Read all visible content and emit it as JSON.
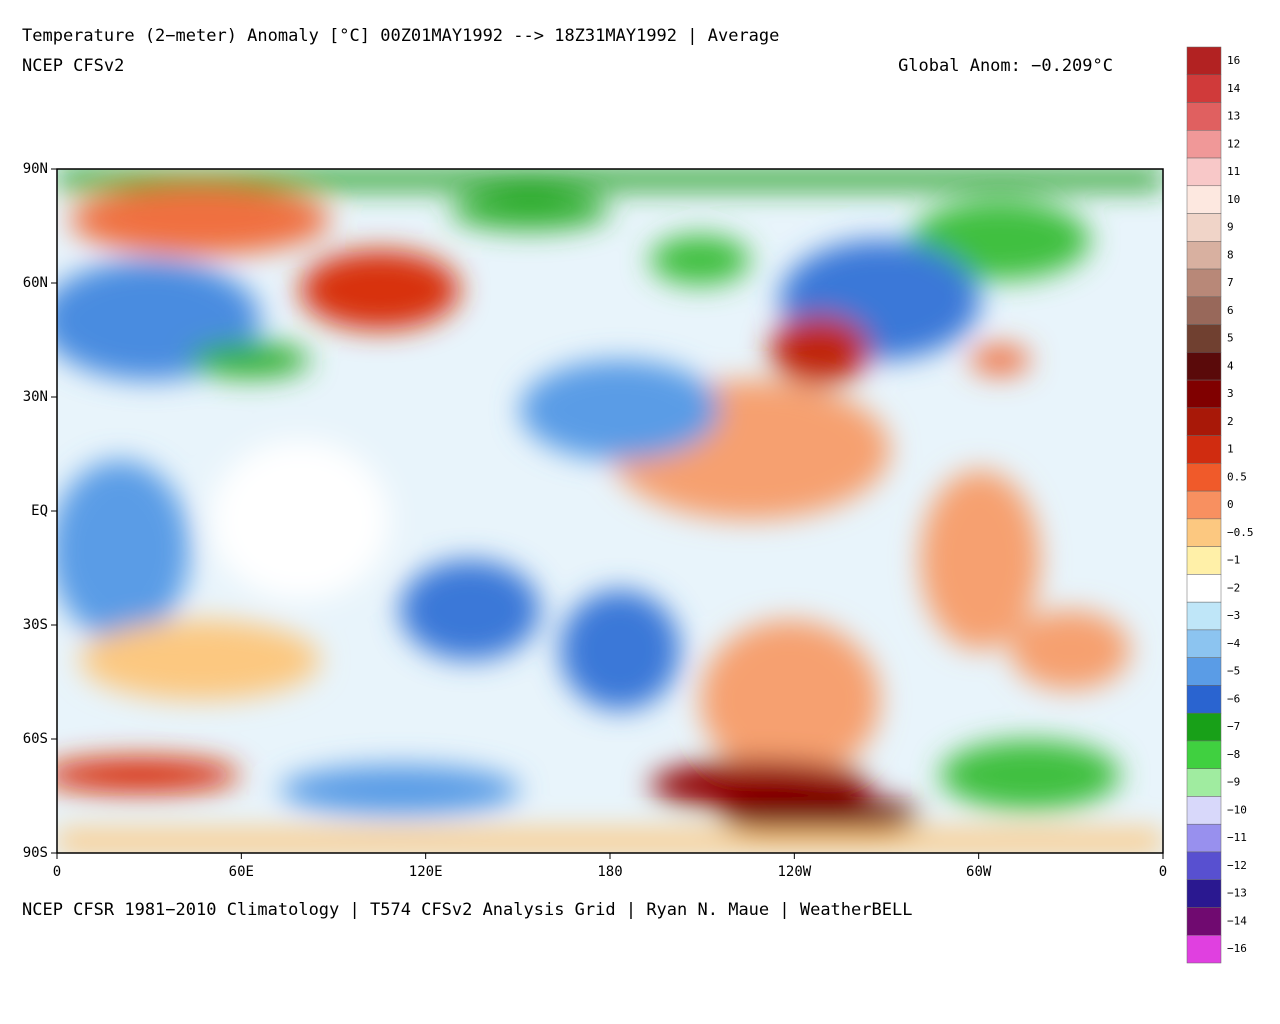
{
  "title": "Temperature (2−meter) Anomaly  [°C] 00Z01MAY1992 --> 18Z31MAY1992 | Average",
  "subtitle": "NCEP CFSv2",
  "global_anom": "Global Anom: −0.209°C",
  "footer": "NCEP CFSR 1981−2010 Climatology | T574 CFSv2 Analysis Grid | Ryan N. Maue | WeatherBELL",
  "lat_labels": [
    "90N",
    "60N",
    "30N",
    "EQ",
    "30S",
    "60S",
    "90S"
  ],
  "lon_labels": [
    "0",
    "60E",
    "120E",
    "180",
    "120W",
    "60W",
    "0"
  ],
  "colorbar": {
    "labels": [
      "16",
      "14",
      "13",
      "12",
      "11",
      "10",
      "9",
      "8",
      "7",
      "6",
      "5",
      "4",
      "3",
      "2",
      "1",
      "0.5",
      "0",
      "−0.5",
      "−1",
      "−2",
      "−3",
      "−4",
      "−5",
      "−6",
      "−7",
      "−8",
      "−9",
      "−10",
      "−11",
      "−12",
      "−13",
      "−14",
      "−16"
    ],
    "colors": [
      "#b22222",
      "#d03a3a",
      "#e06060",
      "#f09898",
      "#f8c8c8",
      "#fde8e0",
      "#f0d4c8",
      "#d8b0a0",
      "#b88878",
      "#98685a",
      "#704030",
      "#5a0a0a",
      "#800000",
      "#a81808",
      "#d02c10",
      "#f05a2a",
      "#f89060",
      "#fcc880",
      "#fff0a8",
      "#ffffff",
      "#bfe6f8",
      "#8cc4f0",
      "#5a9ce6",
      "#2a64d0",
      "#18a018",
      "#40d040",
      "#a0eca0",
      "#d8d8fa",
      "#9890ee",
      "#5850d0",
      "#2a1890",
      "#700a70",
      "#e040e0"
    ]
  }
}
